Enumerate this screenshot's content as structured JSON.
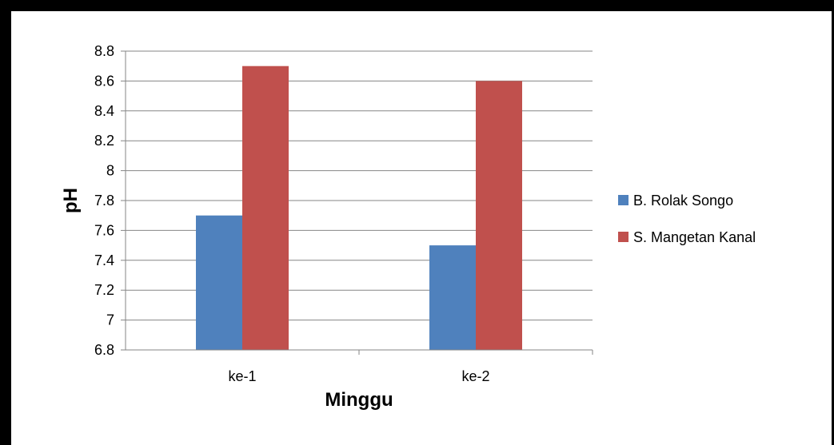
{
  "chart_data": {
    "type": "bar",
    "title": "",
    "xlabel": "Minggu",
    "ylabel": "pH",
    "categories": [
      "ke-1",
      "ke-2"
    ],
    "series": [
      {
        "name": "B. Rolak Songo",
        "values": [
          7.7,
          7.5
        ],
        "color": "#4f81bd"
      },
      {
        "name": "S. Mangetan Kanal",
        "values": [
          8.7,
          8.6
        ],
        "color": "#c0504d"
      }
    ],
    "ylim": [
      6.8,
      8.8
    ],
    "yticks": [
      "6.8",
      "7",
      "7.2",
      "7.4",
      "7.6",
      "7.8",
      "8",
      "8.2",
      "8.4",
      "8.6",
      "8.8"
    ],
    "grid": true,
    "legend": "right"
  }
}
